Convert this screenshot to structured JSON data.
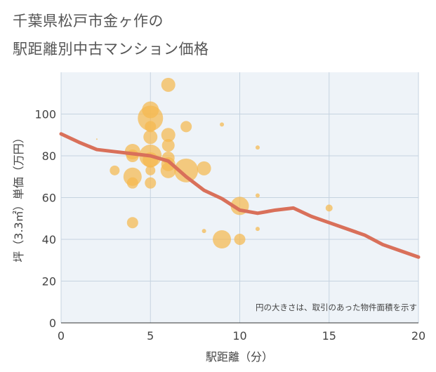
{
  "title": {
    "line1": "千葉県松戸市金ヶ作の",
    "line2": "駅距離別中古マンション価格"
  },
  "chart_data": {
    "type": "scatter",
    "xlabel": "駅距離（分）",
    "ylabel": "坪（3.3㎡）単価（万円）",
    "xlim": [
      0,
      20
    ],
    "ylim": [
      0,
      120
    ],
    "xticks": [
      0,
      5,
      10,
      15,
      20
    ],
    "yticks": [
      0,
      20,
      40,
      60,
      80,
      100
    ],
    "note": "円の大きさは、取引のあった物件面積を示す",
    "grid": true,
    "bubble_color": "#f5b84f",
    "line_color": "#d9705a",
    "bubbles": [
      {
        "x": 2,
        "y": 88,
        "size": 1
      },
      {
        "x": 3,
        "y": 73,
        "size": 7
      },
      {
        "x": 4,
        "y": 82,
        "size": 11
      },
      {
        "x": 4,
        "y": 80,
        "size": 9
      },
      {
        "x": 4,
        "y": 70,
        "size": 13
      },
      {
        "x": 4,
        "y": 67,
        "size": 8
      },
      {
        "x": 4,
        "y": 48,
        "size": 8
      },
      {
        "x": 5,
        "y": 102,
        "size": 12
      },
      {
        "x": 5,
        "y": 98,
        "size": 18
      },
      {
        "x": 5,
        "y": 94,
        "size": 8
      },
      {
        "x": 5,
        "y": 89,
        "size": 10
      },
      {
        "x": 5,
        "y": 80,
        "size": 16
      },
      {
        "x": 5,
        "y": 78,
        "size": 11
      },
      {
        "x": 5,
        "y": 73,
        "size": 7
      },
      {
        "x": 5,
        "y": 67,
        "size": 8
      },
      {
        "x": 6,
        "y": 114,
        "size": 10
      },
      {
        "x": 6,
        "y": 90,
        "size": 10
      },
      {
        "x": 6,
        "y": 85,
        "size": 9
      },
      {
        "x": 6,
        "y": 79,
        "size": 9
      },
      {
        "x": 6,
        "y": 76,
        "size": 10
      },
      {
        "x": 6,
        "y": 73,
        "size": 11
      },
      {
        "x": 7,
        "y": 94,
        "size": 8
      },
      {
        "x": 7,
        "y": 73,
        "size": 17
      },
      {
        "x": 8,
        "y": 74,
        "size": 10
      },
      {
        "x": 8,
        "y": 44,
        "size": 3
      },
      {
        "x": 9,
        "y": 95,
        "size": 3
      },
      {
        "x": 9,
        "y": 40,
        "size": 13
      },
      {
        "x": 10,
        "y": 56,
        "size": 13
      },
      {
        "x": 10,
        "y": 40,
        "size": 8
      },
      {
        "x": 11,
        "y": 84,
        "size": 3
      },
      {
        "x": 11,
        "y": 61,
        "size": 3
      },
      {
        "x": 11,
        "y": 45,
        "size": 3
      },
      {
        "x": 15,
        "y": 55,
        "size": 5
      }
    ],
    "trend": {
      "x": [
        0,
        1,
        2,
        3,
        4,
        5,
        6,
        7,
        8,
        9,
        10,
        11,
        12,
        13,
        14,
        15,
        16,
        17,
        18,
        19,
        20
      ],
      "y": [
        90.5,
        86.5,
        83,
        82,
        81,
        80,
        77.5,
        70,
        63.5,
        59.5,
        54,
        52.5,
        54,
        55,
        51,
        48,
        45,
        42,
        37.5,
        34.5,
        31.5
      ]
    }
  }
}
